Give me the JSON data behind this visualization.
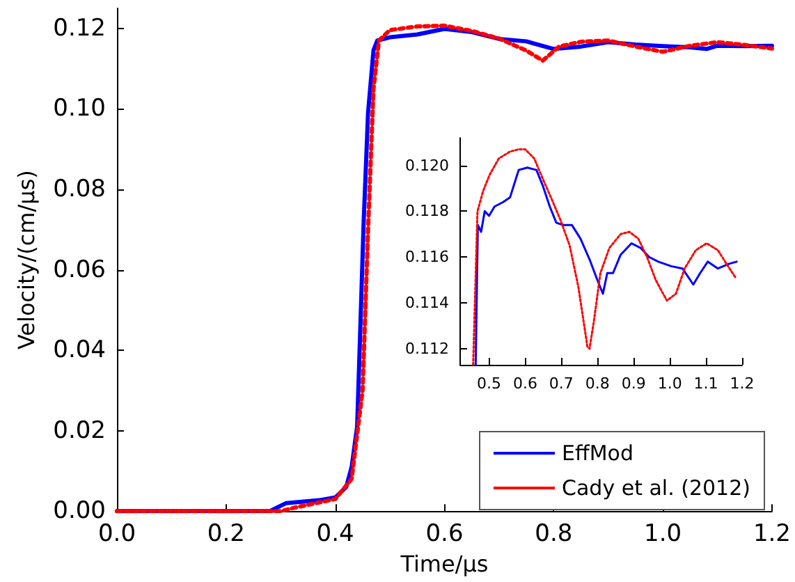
{
  "chart_data": [
    {
      "type": "line",
      "xlabel": "Time/μs",
      "ylabel": "Velocity/(cm/μs)",
      "xlim": [
        0,
        1.2
      ],
      "ylim": [
        0,
        0.125
      ],
      "xticks": [
        {
          "value": 0,
          "label": "0.0"
        },
        {
          "value": 0.2,
          "label": "0.2"
        },
        {
          "value": 0.4,
          "label": "0.4"
        },
        {
          "value": 0.6,
          "label": "0.6"
        },
        {
          "value": 0.8,
          "label": "0.8"
        },
        {
          "value": 1.0,
          "label": "1.0"
        },
        {
          "value": 1.2,
          "label": "1.2"
        }
      ],
      "yticks": [
        {
          "value": 0,
          "label": "0.00"
        },
        {
          "value": 0.02,
          "label": "0.02"
        },
        {
          "value": 0.04,
          "label": "0.04"
        },
        {
          "value": 0.06,
          "label": "0.06"
        },
        {
          "value": 0.08,
          "label": "0.08"
        },
        {
          "value": 0.1,
          "label": "0.10"
        },
        {
          "value": 0.12,
          "label": "0.12"
        }
      ],
      "grid": false,
      "legend": "bottom right",
      "marker": "none",
      "series": [
        {
          "name": "EffMod",
          "color": "#0000ff",
          "line_style": "solid",
          "x": [
            0,
            0.28,
            0.31,
            0.37,
            0.4,
            0.42,
            0.43,
            0.44,
            0.445,
            0.452,
            0.46,
            0.47,
            0.477,
            0.5,
            0.55,
            0.6,
            0.65,
            0.7,
            0.75,
            0.8,
            0.85,
            0.9,
            0.95,
            1.0,
            1.05,
            1.08,
            1.1,
            1.15,
            1.2
          ],
          "values": [
            0,
            0,
            0.002,
            0.0027,
            0.0034,
            0.006,
            0.011,
            0.021,
            0.042,
            0.072,
            0.099,
            0.1146,
            0.117,
            0.1178,
            0.1185,
            0.1199,
            0.1191,
            0.1174,
            0.1168,
            0.1149,
            0.1155,
            0.1166,
            0.116,
            0.1156,
            0.1153,
            0.1149,
            0.1157,
            0.1156,
            0.1157
          ]
        },
        {
          "name": "Cady et al. (2012)",
          "color": "#ff0000",
          "line_style": "dotted",
          "x": [
            0,
            0.3,
            0.33,
            0.4,
            0.43,
            0.45,
            0.46,
            0.47,
            0.48,
            0.5,
            0.55,
            0.6,
            0.65,
            0.7,
            0.75,
            0.78,
            0.81,
            0.85,
            0.9,
            0.95,
            1.0,
            1.05,
            1.1,
            1.15,
            1.2
          ],
          "values": [
            0,
            0,
            0.001,
            0.003,
            0.008,
            0.03,
            0.07,
            0.105,
            0.117,
            0.1196,
            0.1205,
            0.1207,
            0.1194,
            0.1175,
            0.1145,
            0.112,
            0.1155,
            0.1167,
            0.117,
            0.1155,
            0.1142,
            0.1157,
            0.1166,
            0.1159,
            0.115
          ]
        }
      ]
    },
    {
      "type": "line",
      "xlim": [
        0.42,
        1.2
      ],
      "ylim": [
        0.1113,
        0.1212
      ],
      "xticks": [
        {
          "value": 0.5,
          "label": "0.5"
        },
        {
          "value": 0.6,
          "label": "0.6"
        },
        {
          "value": 0.7,
          "label": "0.7"
        },
        {
          "value": 0.8,
          "label": "0.8"
        },
        {
          "value": 0.9,
          "label": "0.9"
        },
        {
          "value": 1.0,
          "label": "1.0"
        },
        {
          "value": 1.1,
          "label": "1.1"
        },
        {
          "value": 1.2,
          "label": "1.2"
        }
      ],
      "yticks": [
        {
          "value": 0.112,
          "label": "0.112"
        },
        {
          "value": 0.114,
          "label": "0.114"
        },
        {
          "value": 0.116,
          "label": "0.116"
        },
        {
          "value": 0.118,
          "label": "0.118"
        },
        {
          "value": 0.12,
          "label": "0.120"
        }
      ],
      "grid": false,
      "legend": false,
      "marker": "none",
      "series": [
        {
          "color": "#0000ff",
          "line_style": "solid",
          "x": [
            0.463,
            0.469,
            0.478,
            0.488,
            0.5,
            0.515,
            0.539,
            0.558,
            0.582,
            0.606,
            0.631,
            0.649,
            0.668,
            0.686,
            0.704,
            0.729,
            0.753,
            0.778,
            0.802,
            0.815,
            0.827,
            0.843,
            0.864,
            0.894,
            0.919,
            0.943,
            0.968,
            1.004,
            1.035,
            1.065,
            1.084,
            1.105,
            1.133,
            1.163,
            1.185
          ],
          "values": [
            0.1113,
            0.1174,
            0.1171,
            0.118,
            0.1178,
            0.1182,
            0.1184,
            0.1186,
            0.1198,
            0.1199,
            0.1198,
            0.1191,
            0.1182,
            0.1175,
            0.1174,
            0.1174,
            0.1168,
            0.1159,
            0.1149,
            0.1144,
            0.1153,
            0.1153,
            0.1161,
            0.1166,
            0.1164,
            0.116,
            0.1158,
            0.1156,
            0.1155,
            0.1148,
            0.1153,
            0.1158,
            0.1155,
            0.1157,
            0.1158
          ]
        },
        {
          "color": "#ff0000",
          "line_style": "dotted",
          "x": [
            0.456,
            0.468,
            0.484,
            0.502,
            0.527,
            0.558,
            0.582,
            0.6,
            0.625,
            0.649,
            0.674,
            0.698,
            0.723,
            0.747,
            0.772,
            0.778,
            0.79,
            0.808,
            0.833,
            0.864,
            0.888,
            0.913,
            0.937,
            0.961,
            0.992,
            1.017,
            1.041,
            1.072,
            1.102,
            1.133,
            1.157,
            1.182
          ],
          "values": [
            0.1113,
            0.118,
            0.1189,
            0.1196,
            0.1203,
            0.1206,
            0.1207,
            0.1207,
            0.1203,
            0.1194,
            0.1185,
            0.1176,
            0.1165,
            0.1147,
            0.1121,
            0.112,
            0.1132,
            0.1153,
            0.1164,
            0.117,
            0.1171,
            0.1168,
            0.116,
            0.115,
            0.1141,
            0.1144,
            0.1155,
            0.1163,
            0.1166,
            0.1163,
            0.1157,
            0.1151
          ]
        }
      ]
    }
  ]
}
